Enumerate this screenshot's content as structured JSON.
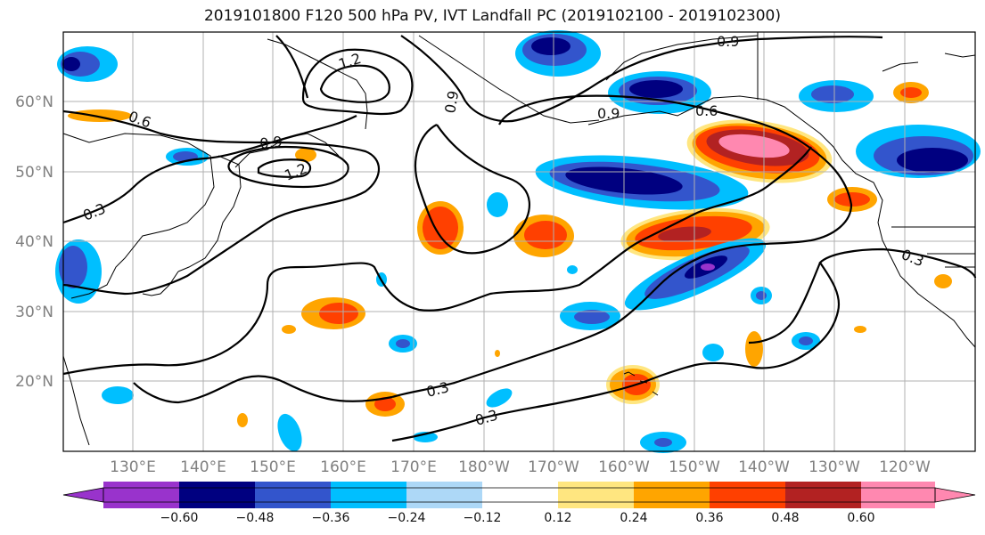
{
  "title": "2019101800 F120 500 hPa PV, IVT Landfall PC (2019102100 - 2019102300)",
  "map": {
    "lon_labels": [
      "130°E",
      "140°E",
      "150°E",
      "160°E",
      "170°E",
      "180°W",
      "170°W",
      "160°W",
      "150°W",
      "140°W",
      "130°W",
      "120°W"
    ],
    "lat_labels": [
      "60°N",
      "50°N",
      "40°N",
      "30°N",
      "20°N"
    ],
    "contour_labels": [
      "1.2",
      "0.9",
      "1.2",
      "0.9",
      "0.9",
      "0.6",
      "0.6",
      "0.9",
      "0.3",
      "0.3",
      "0.3",
      "0.3"
    ]
  },
  "colorbar": {
    "tick_labels": [
      "−0.60",
      "−0.48",
      "−0.36",
      "−0.24",
      "−0.12",
      "0.12",
      "0.24",
      "0.36",
      "0.48",
      "0.60"
    ],
    "colors": [
      "#9933cc",
      "#000080",
      "#3355cc",
      "#00bfff",
      "#add8f7",
      "#ffffff",
      "#ffe680",
      "#ffa500",
      "#ff4000",
      "#b22222",
      "#ff88b0"
    ]
  },
  "colors": {
    "coast": "#000000",
    "grid": "#b0b0b0",
    "contour": "#000000"
  }
}
